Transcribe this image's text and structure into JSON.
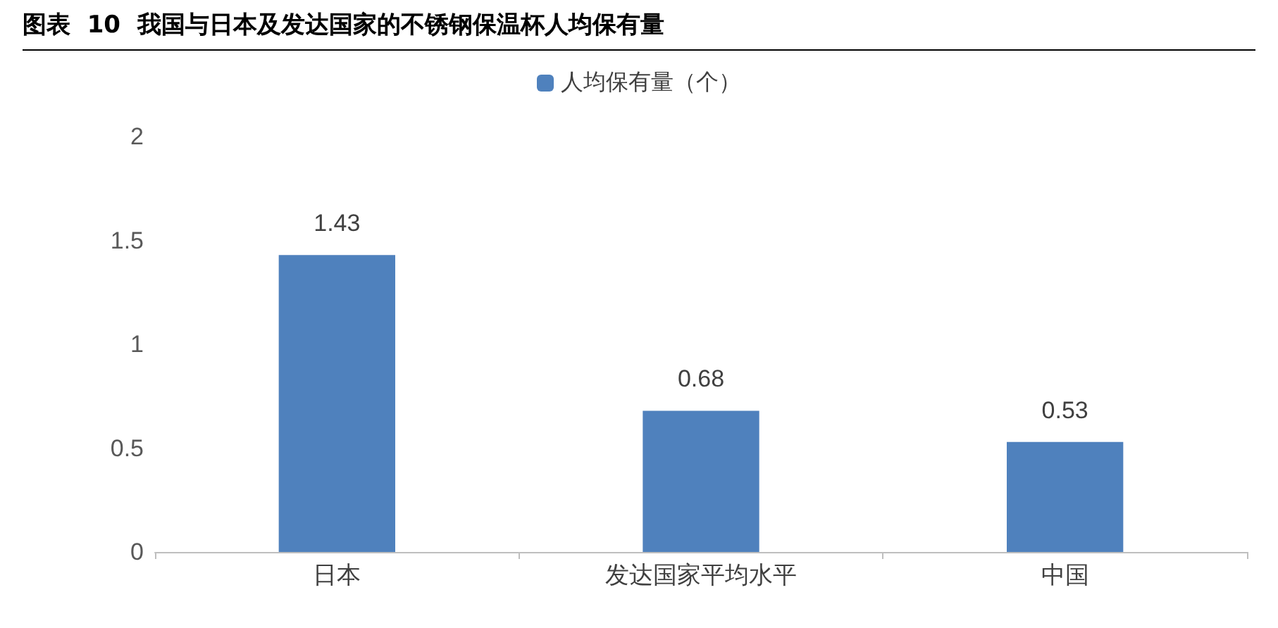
{
  "chart_data": {
    "type": "bar",
    "title": "图表  10  我国与日本及发达国家的不锈钢保温杯人均保有量",
    "categories": [
      "日本",
      "发达国家平均水平",
      "中国"
    ],
    "series": [
      {
        "name": "人均保有量（个）",
        "color": "#4f81bd",
        "values": [
          1.43,
          0.68,
          0.53
        ]
      }
    ],
    "ylim": [
      0,
      2
    ],
    "yticks": [
      0,
      0.5,
      1,
      1.5,
      2
    ],
    "grid": false,
    "legend": "top",
    "data_labels": true
  }
}
